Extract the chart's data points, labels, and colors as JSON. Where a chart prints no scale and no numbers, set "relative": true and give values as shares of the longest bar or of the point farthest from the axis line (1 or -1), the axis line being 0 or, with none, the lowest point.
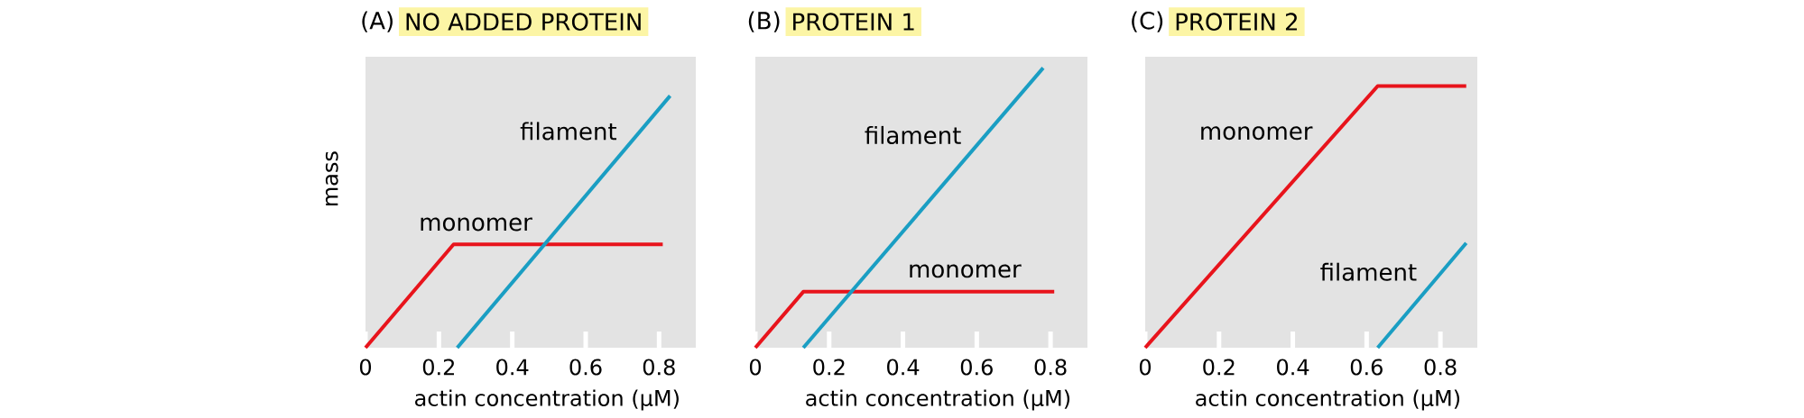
{
  "chart_data": [
    {
      "type": "line",
      "relative": true,
      "title": "NO ADDED PROTEIN",
      "annotations": [
        "(A)"
      ],
      "xlabel": "actin concentration (μM)",
      "ylabel": "mass",
      "xlim": [
        0,
        0.9
      ],
      "xticks": [
        0,
        0.2,
        0.4,
        0.6,
        0.8
      ],
      "tick_labels": "x",
      "legend": false,
      "grid": false,
      "marker": "none",
      "line_style": "solid",
      "series": [
        {
          "name": "monomer",
          "color": "#e8141c",
          "x": [
            0,
            0.24,
            0.81
          ],
          "values": [
            0,
            0.41,
            0.41
          ]
        },
        {
          "name": "filament",
          "color": "#1a9ec3",
          "x": [
            0.25,
            0.83
          ],
          "values": [
            0,
            1
          ]
        }
      ]
    },
    {
      "type": "line",
      "relative": true,
      "title": "PROTEIN 1",
      "annotations": [
        "(B)"
      ],
      "xlabel": "actin concentration (μM)",
      "xlim": [
        0,
        0.9
      ],
      "xticks": [
        0,
        0.2,
        0.4,
        0.6,
        0.8
      ],
      "tick_labels": "x",
      "legend": false,
      "grid": false,
      "marker": "none",
      "line_style": "solid",
      "series": [
        {
          "name": "monomer",
          "color": "#e8141c",
          "x": [
            0,
            0.13,
            0.81
          ],
          "values": [
            0,
            0.2,
            0.2
          ]
        },
        {
          "name": "filament",
          "color": "#1a9ec3",
          "x": [
            0.13,
            0.78
          ],
          "values": [
            0,
            1
          ]
        }
      ]
    },
    {
      "type": "line",
      "relative": true,
      "title": "PROTEIN 2",
      "annotations": [
        "(C)"
      ],
      "xlabel": "actin concentration (μM)",
      "xlim": [
        0,
        0.9
      ],
      "xticks": [
        0,
        0.2,
        0.4,
        0.6,
        0.8
      ],
      "tick_labels": "x",
      "legend": false,
      "grid": false,
      "marker": "none",
      "line_style": "solid",
      "series": [
        {
          "name": "monomer",
          "color": "#e8141c",
          "x": [
            0,
            0.63,
            0.87
          ],
          "values": [
            0,
            1,
            1
          ]
        },
        {
          "name": "filament",
          "color": "#1a9ec3",
          "x": [
            0.63,
            0.87
          ],
          "values": [
            0,
            0.4
          ]
        }
      ]
    }
  ]
}
